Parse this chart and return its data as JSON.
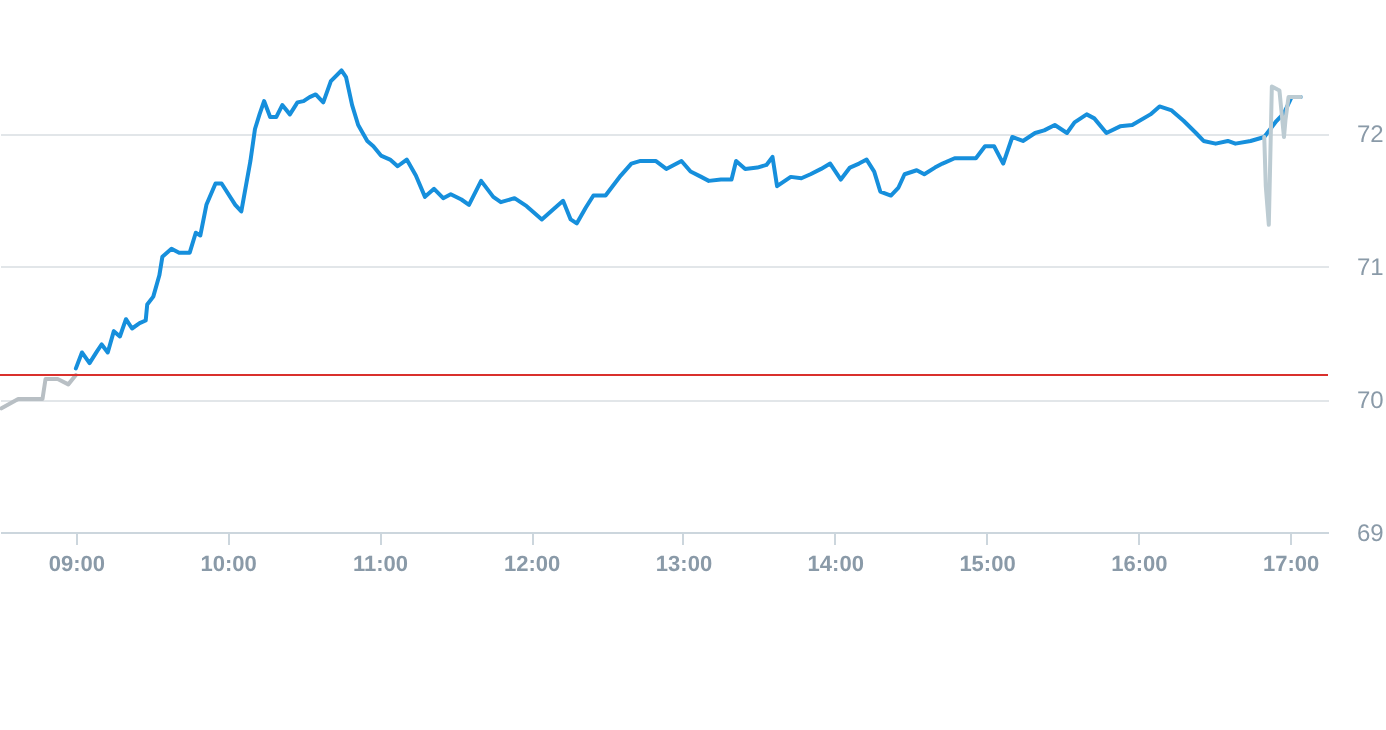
{
  "chart_data": {
    "type": "line",
    "xlim": [
      8.5,
      17.25
    ],
    "ylim": [
      69,
      73
    ],
    "xticks": [
      {
        "value": 9,
        "label": "09:00"
      },
      {
        "value": 10,
        "label": "10:00"
      },
      {
        "value": 11,
        "label": "11:00"
      },
      {
        "value": 12,
        "label": "12:00"
      },
      {
        "value": 13,
        "label": "13:00"
      },
      {
        "value": 14,
        "label": "14:00"
      },
      {
        "value": 15,
        "label": "15:00"
      },
      {
        "value": 16,
        "label": "16:00"
      },
      {
        "value": 17,
        "label": "17:00"
      }
    ],
    "yticks": [
      69,
      70,
      71,
      72
    ],
    "grid": "y",
    "marker": "none",
    "line_style": "solid",
    "ref_lines": [
      {
        "axis": "y",
        "value": 70.18,
        "color": "#d9302c"
      }
    ],
    "series": [
      {
        "color": "#b8bfc4",
        "x": [
          8.51,
          8.62,
          8.78,
          8.8,
          8.88,
          8.95,
          9.0
        ],
        "values": [
          69.93,
          70.0,
          70.0,
          70.15,
          70.15,
          70.11,
          70.18
        ]
      },
      {
        "color": "#168fdc",
        "x": [
          9.0,
          9.04,
          9.09,
          9.14,
          9.17,
          9.21,
          9.25,
          9.29,
          9.33,
          9.37,
          9.42,
          9.46,
          9.47,
          9.51,
          9.55,
          9.57,
          9.63,
          9.68,
          9.75,
          9.79,
          9.82,
          9.86,
          9.92,
          9.96,
          10.05,
          10.09,
          10.15,
          10.18,
          10.21,
          10.24,
          10.28,
          10.32,
          10.36,
          10.41,
          10.46,
          10.5,
          10.54,
          10.58,
          10.63,
          10.68,
          10.75,
          10.78,
          10.82,
          10.86,
          10.92,
          10.96,
          11.01,
          11.07,
          11.12,
          11.18,
          11.24,
          11.3,
          11.36,
          11.42,
          11.47,
          11.54,
          11.59,
          11.67,
          11.75,
          11.8,
          11.89,
          11.97,
          12.07,
          12.15,
          12.21,
          12.26,
          12.3,
          12.36,
          12.41,
          12.49,
          12.59,
          12.66,
          12.72,
          12.82,
          12.89,
          12.99,
          13.05,
          13.12,
          13.17,
          13.25,
          13.32,
          13.35,
          13.41,
          13.49,
          13.55,
          13.59,
          13.62,
          13.71,
          13.78,
          13.84,
          13.91,
          13.97,
          14.04,
          14.1,
          14.16,
          14.21,
          14.26,
          14.3,
          14.37,
          14.42,
          14.46,
          14.54,
          14.59,
          14.66,
          14.71,
          14.79,
          14.86,
          14.93,
          14.99,
          15.05,
          15.11,
          15.17,
          15.24,
          15.32,
          15.38,
          15.45,
          15.53,
          15.58,
          15.66,
          15.71,
          15.79,
          15.88,
          15.96,
          16.08,
          16.14,
          16.22,
          16.3,
          16.38,
          16.43,
          16.51,
          16.59,
          16.64,
          16.74,
          16.83,
          16.91,
          16.96,
          17.01,
          17.07
        ],
        "values": [
          70.23,
          70.35,
          70.27,
          70.36,
          70.41,
          70.35,
          70.51,
          70.47,
          70.6,
          70.53,
          70.57,
          70.59,
          70.71,
          70.77,
          70.93,
          71.07,
          71.13,
          71.1,
          71.1,
          71.25,
          71.23,
          71.46,
          71.62,
          71.62,
          71.46,
          71.41,
          71.79,
          72.03,
          72.14,
          72.24,
          72.12,
          72.12,
          72.21,
          72.14,
          72.23,
          72.24,
          72.27,
          72.29,
          72.23,
          72.39,
          72.47,
          72.42,
          72.21,
          72.06,
          71.94,
          71.9,
          71.83,
          71.8,
          71.75,
          71.8,
          71.68,
          71.52,
          71.58,
          71.51,
          71.54,
          71.5,
          71.46,
          71.64,
          71.52,
          71.48,
          71.51,
          71.45,
          71.35,
          71.43,
          71.49,
          71.35,
          71.32,
          71.44,
          71.53,
          71.53,
          71.68,
          71.77,
          71.79,
          71.79,
          71.73,
          71.79,
          71.71,
          71.67,
          71.64,
          71.65,
          71.65,
          71.79,
          71.73,
          71.74,
          71.76,
          71.82,
          71.6,
          71.67,
          71.66,
          71.69,
          71.73,
          71.77,
          71.65,
          71.74,
          71.77,
          71.8,
          71.71,
          71.56,
          71.53,
          71.59,
          71.69,
          71.72,
          71.69,
          71.74,
          71.77,
          71.81,
          71.81,
          71.81,
          71.9,
          71.9,
          71.77,
          71.97,
          71.94,
          72.0,
          72.02,
          72.06,
          72.0,
          72.08,
          72.14,
          72.11,
          72.0,
          72.05,
          72.06,
          72.14,
          72.2,
          72.17,
          72.09,
          72.0,
          71.94,
          71.92,
          71.94,
          71.92,
          71.94,
          71.97,
          72.09,
          72.15,
          72.27,
          72.27
        ]
      },
      {
        "color": "#bccbd2",
        "x": [
          16.83,
          16.84,
          16.86,
          16.88,
          16.93,
          16.96,
          16.97,
          16.99,
          17.07
        ],
        "values": [
          71.97,
          71.6,
          71.31,
          72.35,
          72.32,
          71.97,
          72.1,
          72.27,
          72.27
        ]
      }
    ]
  }
}
